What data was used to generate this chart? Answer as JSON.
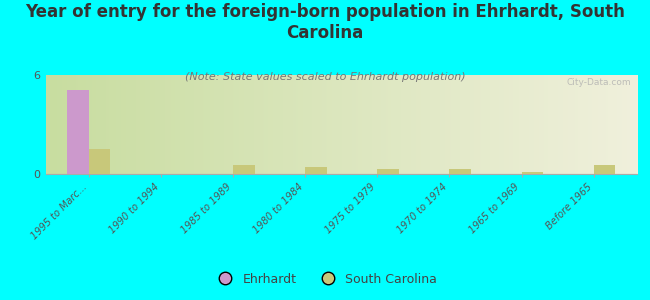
{
  "title": "Year of entry for the foreign-born population in Ehrhardt, South\nCarolina",
  "subtitle": "(Note: State values scaled to Ehrhardt population)",
  "categories": [
    "1995 to Marc...",
    "1990 to 1994",
    "1985 to 1989",
    "1980 to 1984",
    "1975 to 1979",
    "1970 to 1974",
    "1965 to 1969",
    "Before 1965"
  ],
  "ehrhardt_values": [
    5.1,
    0,
    0,
    0,
    0,
    0,
    0,
    0
  ],
  "sc_values_per_cat": [
    1.5,
    0.0,
    0.55,
    0.45,
    0.3,
    0.3,
    0.1,
    0.55
  ],
  "ehrhardt_color": "#cc99cc",
  "sc_color": "#c8c87a",
  "grad_left": "#c8dda0",
  "grad_right": "#f0f0dc",
  "ylim": [
    0,
    6
  ],
  "bg_color": "#00ffff",
  "watermark": "City-Data.com",
  "title_fontsize": 12,
  "subtitle_fontsize": 8,
  "bar_width": 0.3
}
